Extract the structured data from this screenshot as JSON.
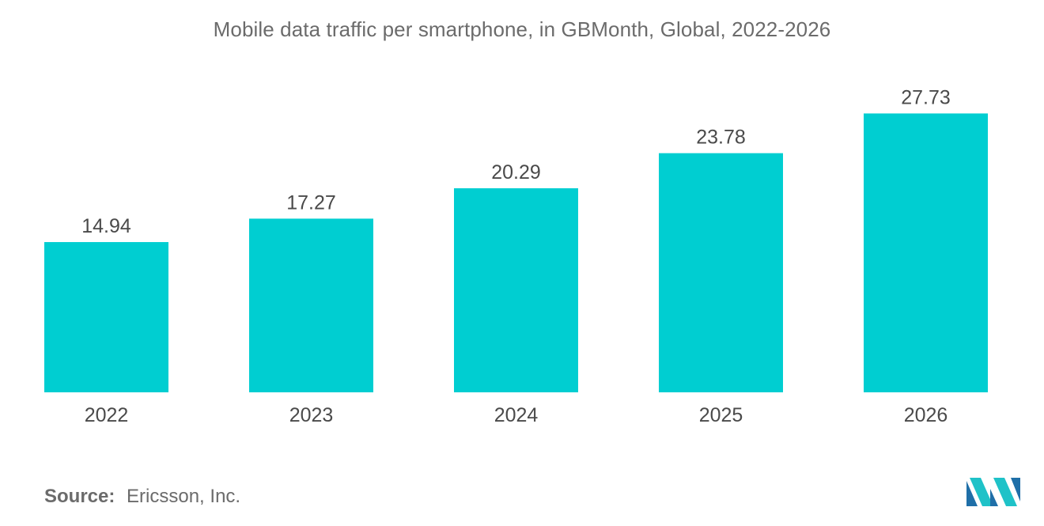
{
  "chart_data": {
    "type": "bar",
    "title": "Mobile data traffic per smartphone, in GBMonth, Global, 2022-2026",
    "categories": [
      "2022",
      "2023",
      "2024",
      "2025",
      "2026"
    ],
    "values": [
      14.94,
      17.27,
      20.29,
      23.78,
      27.73
    ],
    "value_labels": [
      "14.94",
      "17.27",
      "20.29",
      "23.78",
      "27.73"
    ],
    "xlabel": "",
    "ylabel": "",
    "ylim": [
      0,
      28
    ],
    "grid": false,
    "legend": "none",
    "bar_color": "#00ced1"
  },
  "source": {
    "key": "Source:",
    "value": "Ericsson, Inc."
  },
  "logo": {
    "name": "mordor-intelligence-logo",
    "colors": [
      "#1f6fa8",
      "#1fc2c8"
    ]
  }
}
